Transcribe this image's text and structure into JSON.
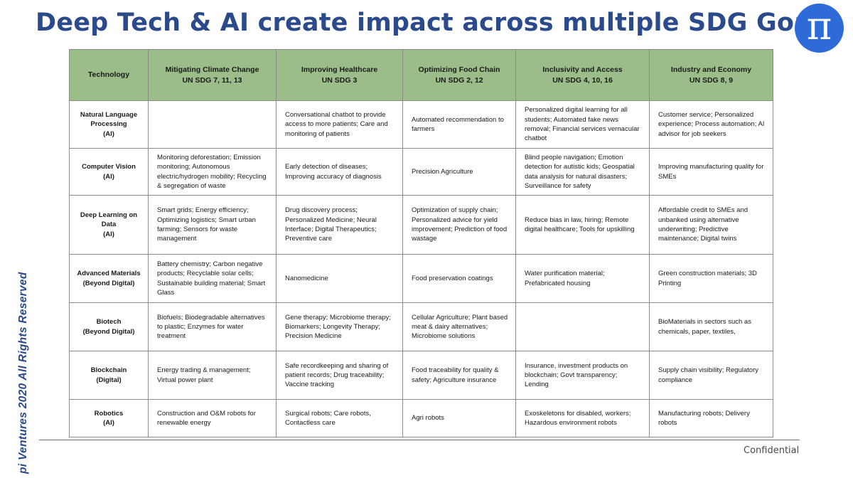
{
  "title": "Deep Tech & AI create impact across multiple SDG Goals",
  "logo": {
    "glyph": "π",
    "color": "#2e6bd9"
  },
  "side_text": "pi Ventures 2020 All Rights Reserved",
  "footer": {
    "confidential": "Confidential"
  },
  "colors": {
    "header_bg": "#9bbd8a",
    "title": "#2b4a8b"
  },
  "table": {
    "header_tech": "Technology",
    "columns": [
      {
        "name": "Mitigating Climate  Change",
        "sdg": "UN SDG 7, 11, 13"
      },
      {
        "name": "Improving Healthcare",
        "sdg": "UN SDG 3"
      },
      {
        "name": "Optimizing Food Chain",
        "sdg": "UN SDG 2, 12"
      },
      {
        "name": "Inclusivity and Access",
        "sdg": "UN SDG 4, 10, 16"
      },
      {
        "name": "Industry and Economy",
        "sdg": "UN SDG 8, 9"
      }
    ],
    "rows": [
      {
        "tech": "Natural Language Processing",
        "category": "(AI)",
        "cells": [
          "",
          "Conversational chatbot to provide access to more patients; Care and monitoring of patients",
          "Automated recommendation to farmers",
          "Personalized digital learning for all students; Automated fake news removal; Financial services vernacular chatbot",
          "Customer service; Personalized experience; Process automation; AI advisor for job seekers"
        ]
      },
      {
        "tech": "Computer Vision",
        "category": "(AI)",
        "cells": [
          "Monitoring deforestation; Emission monitoring; Autonomous electric/hydrogen mobility; Recycling & segregation of waste",
          "Early detection of diseases; Improving accuracy of diagnosis",
          "Precision Agriculture",
          "Blind people navigation; Emotion detection for autistic kids; Geospatial data analysis for natural disasters; Surveillance for safety",
          "Improving manufacturing quality for SMEs"
        ]
      },
      {
        "tech": "Deep Learning on Data",
        "category": "(AI)",
        "cells": [
          "Smart grids; Energy efficiency; Optimizing logistics; Smart urban farming; Sensors for waste management",
          "Drug discovery process; Personalized Medicine; Neural Interface; Digital Therapeutics; Preventive care",
          "Optimization of supply chain; Personalized advice for yield improvement; Prediction of food wastage",
          "Reduce bias in law, hiring; Remote digital healthcare; Tools for upskilling",
          "Affordable credit to SMEs and unbanked using alternative underwriting; Predictive maintenance; Digital twins"
        ]
      },
      {
        "tech": "Advanced Materials",
        "category": "(Beyond Digital)",
        "cells": [
          "Battery chemistry; Carbon negative products; Recyclable solar cells; Sustainable building material; Smart Glass",
          "Nanomedicine",
          "Food preservation coatings",
          "Water purification material; Prefabricated housing",
          "Green construction materials; 3D Printing"
        ]
      },
      {
        "tech": "Biotech",
        "category": "(Beyond Digital)",
        "cells": [
          "Biofuels; Biodegradable alternatives to plastic; Enzymes for water treatment",
          "Gene therapy; Microbiome therapy; Biomarkers; Longevity Therapy; Precision Medicine",
          "Cellular Agriculture; Plant based meat & dairy alternatives; Microbiome solutions",
          "",
          "BioMaterials in sectors such as chemicals, paper, textiles,"
        ]
      },
      {
        "tech": "Blockchain",
        "category": "(Digital)",
        "cells": [
          "Energy trading & management; Virtual power plant",
          "Safe recordkeeping and sharing of patient records; Drug traceability; Vaccine tracking",
          "Food traceability for quality & safety; Agriculture insurance",
          "Insurance, investment products on blockchain; Govt transparency; Lending",
          "Supply chain visibility; Regulatory compliance"
        ]
      },
      {
        "tech": "Robotics",
        "category": "(AI)",
        "cells": [
          "Construction and O&M robots for renewable energy",
          "Surgical robots; Care robots, Contactless care",
          "Agri robots",
          "Exoskeletons for disabled, workers; Hazardous environment robots",
          "Manufacturing robots; Delivery robots"
        ]
      }
    ]
  }
}
